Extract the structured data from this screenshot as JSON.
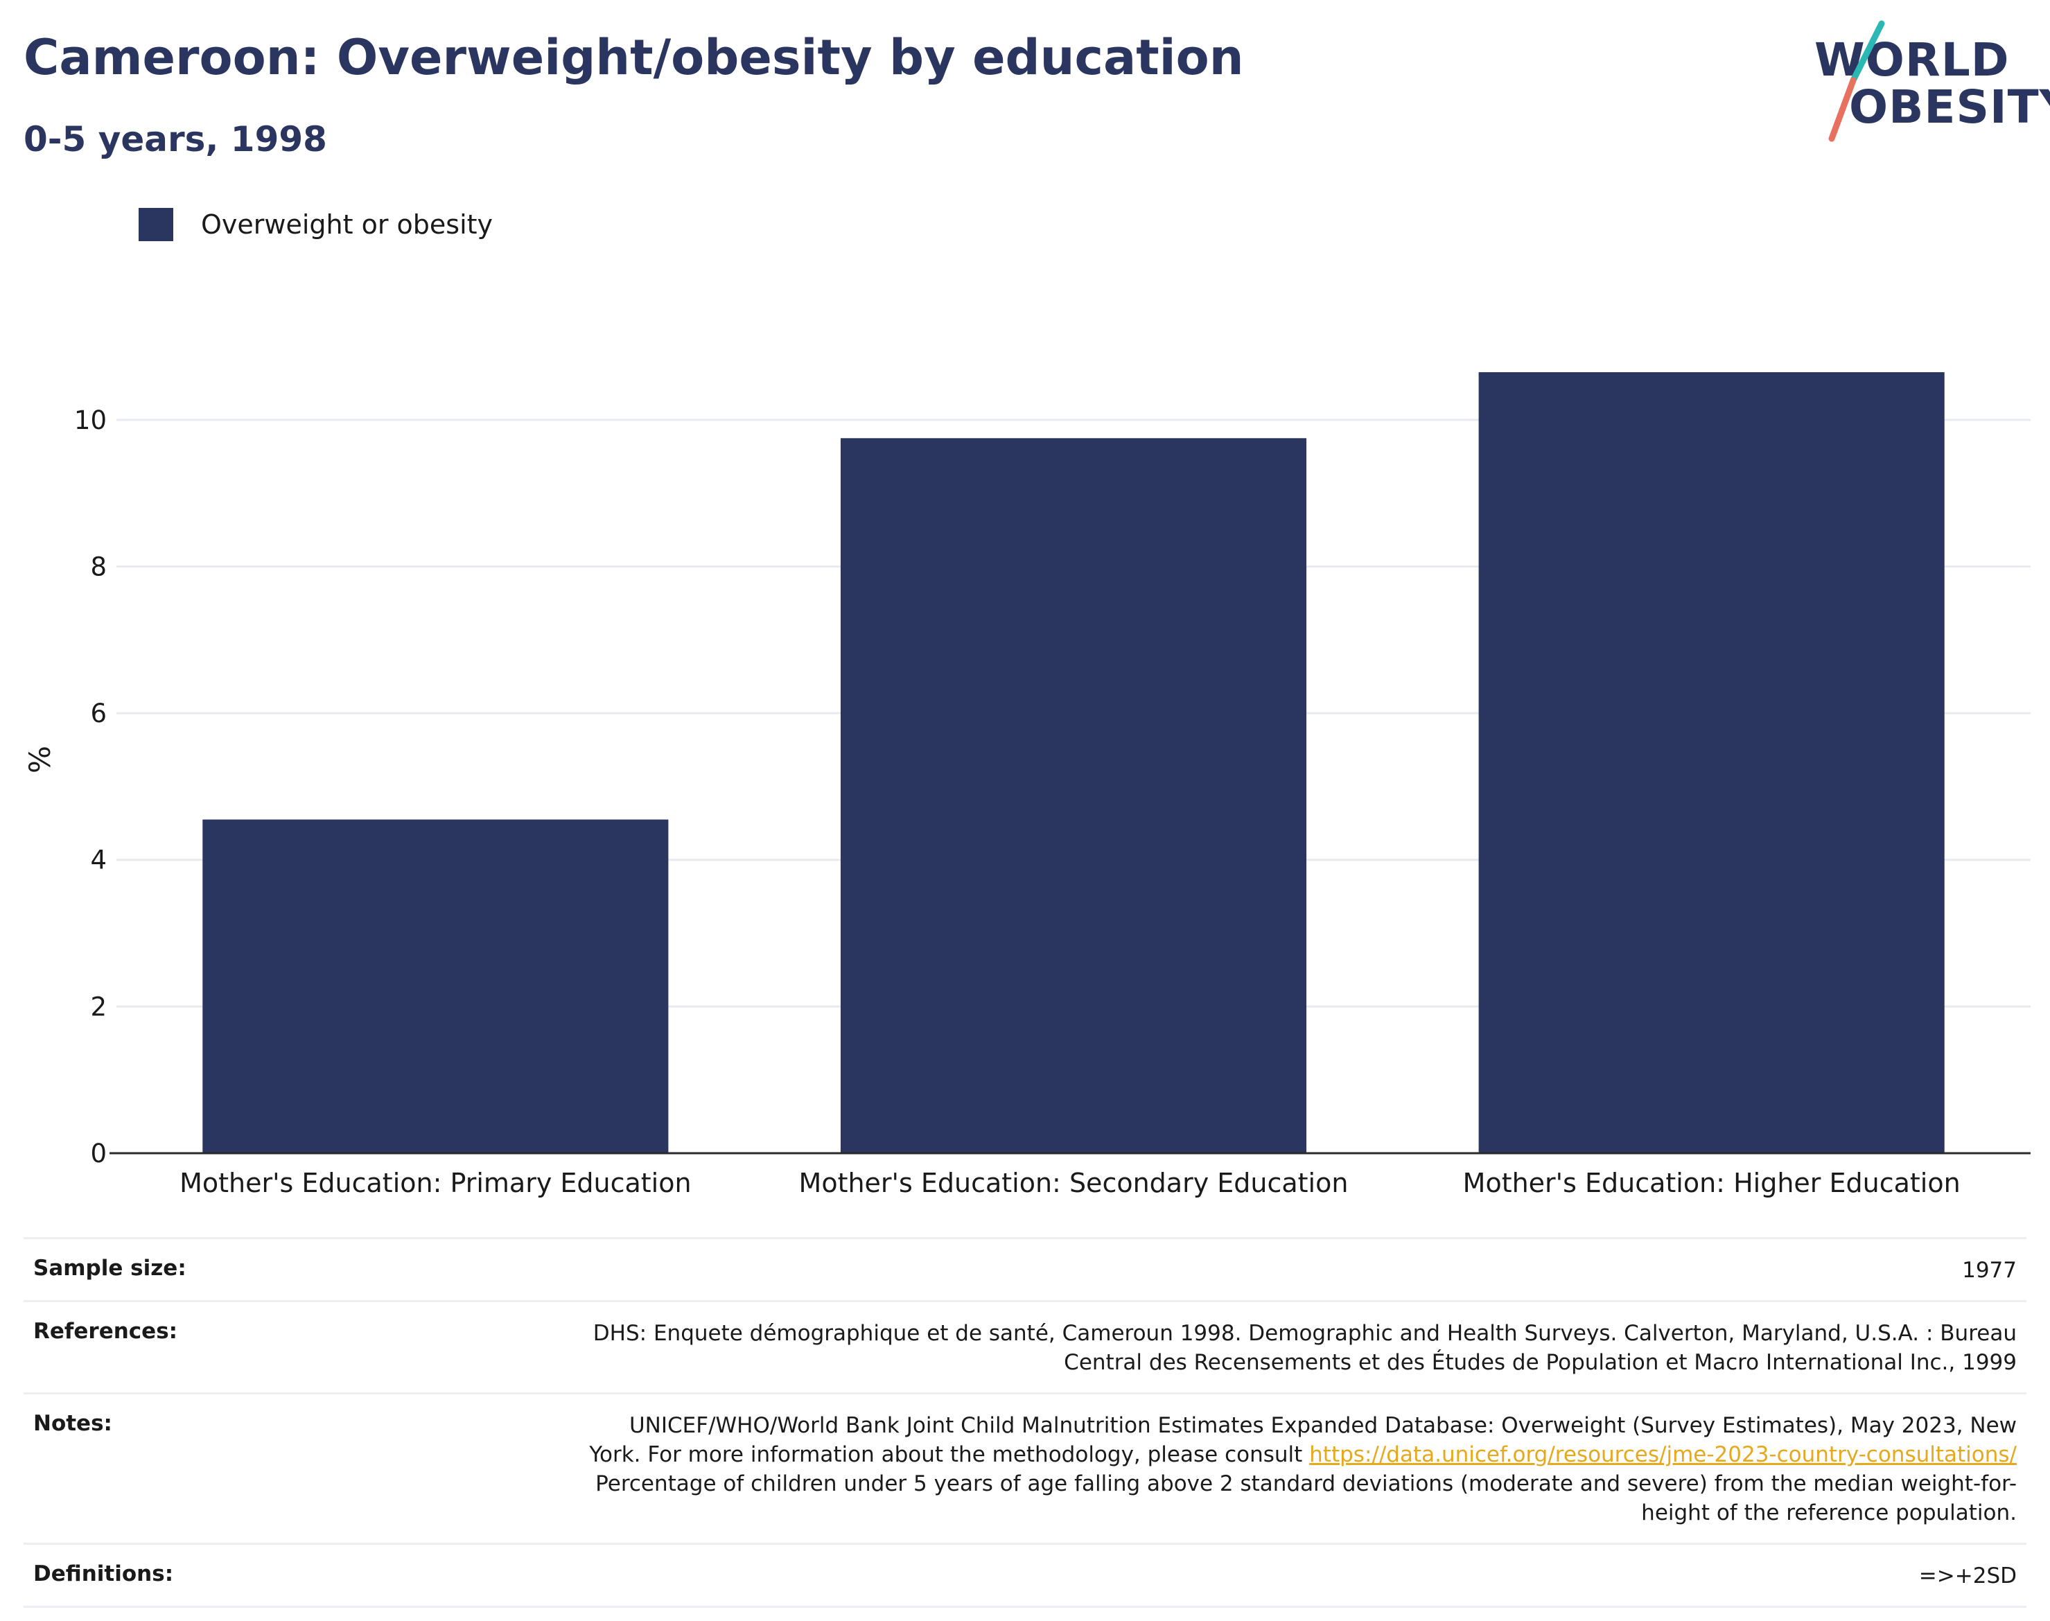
{
  "header": {
    "title": "Cameroon: Overweight/obesity by education",
    "subtitle": "0-5 years, 1998"
  },
  "logo": {
    "line1": "WORLD",
    "line2": "OBESITY",
    "colors": {
      "text": "#2a3560",
      "teal": "#2bb7b3",
      "coral": "#e8705f"
    }
  },
  "legend": {
    "label": "Overweight or obesity",
    "color": "#2a3560"
  },
  "chart_data": {
    "type": "bar",
    "categories": [
      "Mother's Education: Primary Education",
      "Mother's Education: Secondary Education",
      "Mother's Education: Higher Education"
    ],
    "series": [
      {
        "name": "Overweight or obesity",
        "values": [
          4.55,
          9.75,
          10.65
        ],
        "color": "#2a3560"
      }
    ],
    "xlabel": "",
    "ylabel": "%",
    "ylim": [
      0,
      11
    ],
    "yticks": [
      0,
      2,
      4,
      6,
      8,
      10
    ],
    "grid": true,
    "legend_position": "top-left"
  },
  "info": {
    "sample_size": {
      "label": "Sample size:",
      "value": "1977"
    },
    "references": {
      "label": "References:",
      "value": "DHS: Enquete démographique et de santé, Cameroun 1998. Demographic and Health Surveys. Calverton, Maryland, U.S.A. : Bureau Central des Recensements et des Études de Population et Macro International Inc., 1999"
    },
    "notes": {
      "label": "Notes:",
      "text_before": "UNICEF/WHO/World Bank Joint Child Malnutrition Estimates Expanded Database: Overweight (Survey Estimates), May 2023, New York. For more information about the methodology, please consult ",
      "link": "https://data.unicef.org/resources/jme-2023-country-consultations/",
      "text_after": " Percentage of children under 5 years of age falling above 2 standard deviations (moderate and severe) from the median weight-for-height of the reference population."
    },
    "definitions": {
      "label": "Definitions:",
      "value": "=>+2SD"
    }
  }
}
